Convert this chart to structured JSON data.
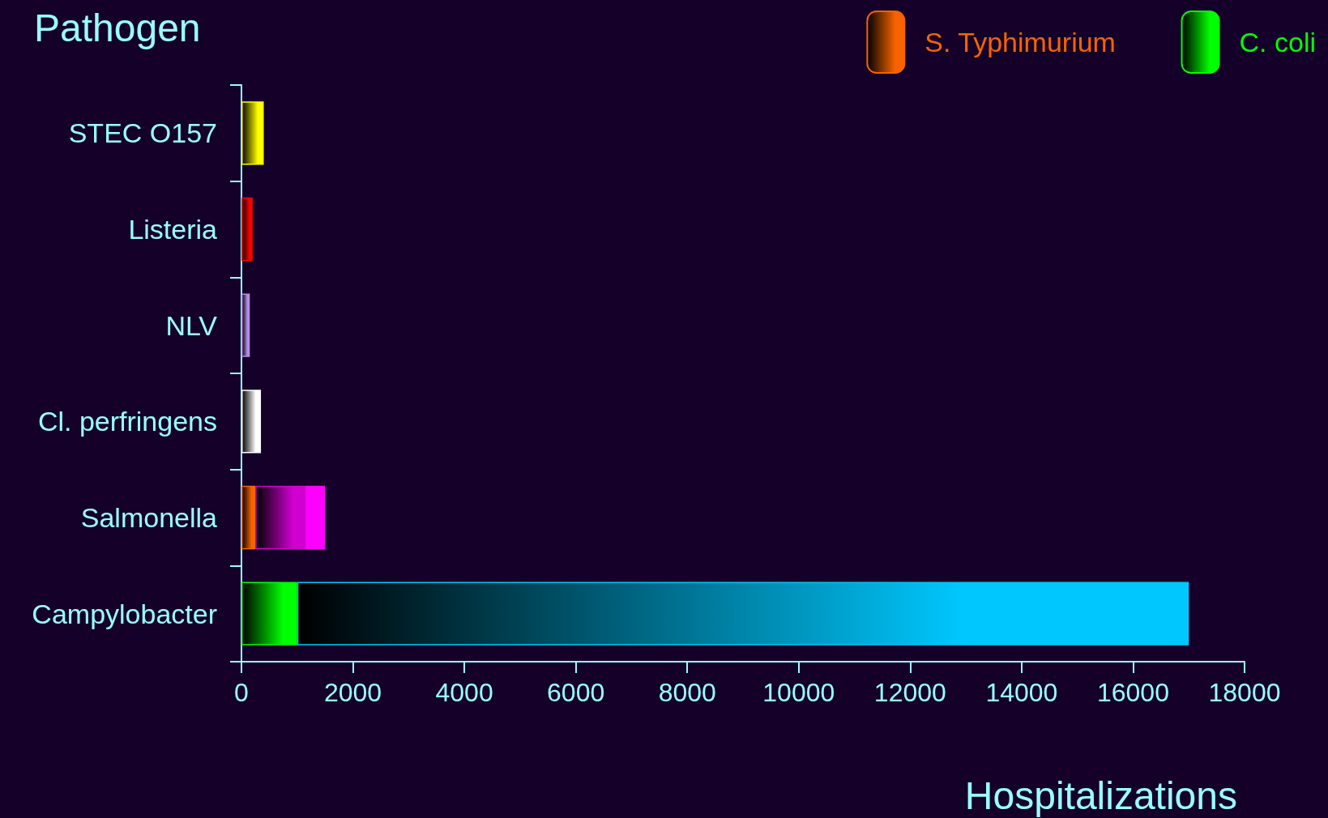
{
  "chart_data": {
    "type": "bar",
    "orientation": "horizontal",
    "stacked": true,
    "ylabel": "Pathogen",
    "xlabel": "Hospitalizations",
    "categories": [
      "STEC O157",
      "Listeria",
      "NLV",
      "Cl. perfringens",
      "Salmonella",
      "Campylobacter"
    ],
    "series": [
      {
        "name": "S. Typhimurium",
        "color": "#f76300",
        "values": [
          null,
          null,
          null,
          null,
          250,
          null
        ]
      },
      {
        "name": "C. coli",
        "color": "#00ff00",
        "values": [
          null,
          null,
          null,
          null,
          null,
          1000
        ]
      },
      {
        "colors": [
          "#ffff00",
          "#ff0000",
          "#b48ce6",
          "#ffffff",
          "#d000d0",
          "#00c8ff"
        ],
        "values": [
          400,
          200,
          150,
          350,
          900,
          16000
        ]
      },
      {
        "colors": [
          null,
          null,
          null,
          null,
          "#ff00ff",
          null
        ],
        "values": [
          null,
          null,
          null,
          null,
          350,
          null
        ]
      }
    ],
    "xlim": [
      0,
      18000
    ],
    "xticks": [
      0,
      2000,
      4000,
      6000,
      8000,
      10000,
      12000,
      14000,
      16000,
      18000
    ],
    "grid": false,
    "legend": "top right"
  }
}
